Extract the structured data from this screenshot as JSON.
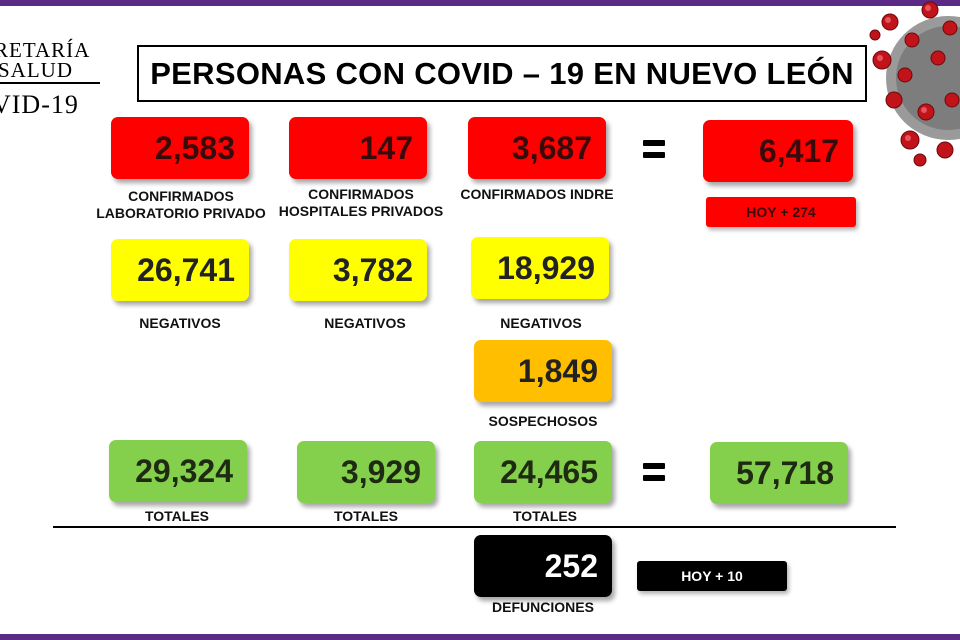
{
  "header": {
    "logo_line1": "RETARÍA",
    "logo_line2": "SALUD",
    "logo_line3": "VID-19",
    "title": "PERSONAS CON COVID – 19 EN NUEVO LEÓN"
  },
  "confirmed": {
    "private_lab": {
      "value": "2,583",
      "label_1": "CONFIRMADOS",
      "label_2": "LABORATORIO PRIVADO"
    },
    "private_hosp": {
      "value": "147",
      "label_1": "CONFIRMADOS",
      "label_2": "HOSPITALES PRIVADOS"
    },
    "indre": {
      "value": "3,687",
      "label_1": "CONFIRMADOS INDRE"
    },
    "total": {
      "value": "6,417",
      "today": "HOY + 274"
    }
  },
  "negatives": {
    "private_lab": {
      "value": "26,741",
      "label": "NEGATIVOS"
    },
    "private_hosp": {
      "value": "3,782",
      "label": "NEGATIVOS"
    },
    "indre": {
      "value": "18,929",
      "label": "NEGATIVOS"
    }
  },
  "suspects": {
    "value": "1,849",
    "label": "SOSPECHOSOS"
  },
  "totals": {
    "private_lab": {
      "value": "29,324",
      "label": "TOTALES"
    },
    "private_hosp": {
      "value": "3,929",
      "label": "TOTALES"
    },
    "indre": {
      "value": "24,465",
      "label": "TOTALES"
    },
    "grand": {
      "value": "57,718"
    }
  },
  "deaths": {
    "value": "252",
    "label": "DEFUNCIONES",
    "today": "HOY + 10"
  },
  "colors": {
    "red": "#ff0000",
    "yellow": "#ffff00",
    "orange": "#ffbf00",
    "green": "#84d04c",
    "black": "#000000",
    "frame": "#5b2a86"
  },
  "icons": {
    "equals": "equals-sign-icon",
    "virus": "coronavirus-image"
  }
}
